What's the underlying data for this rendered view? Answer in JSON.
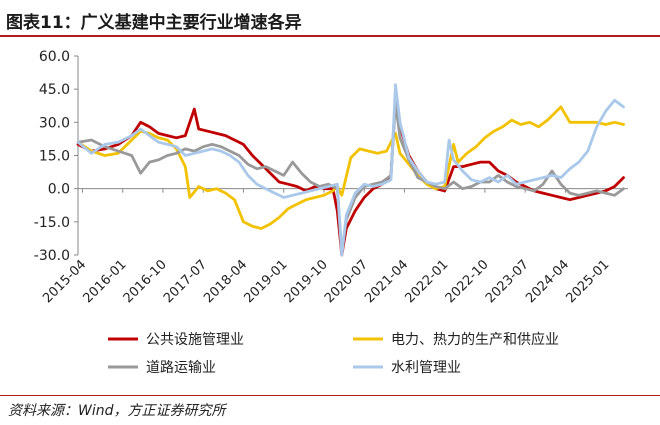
{
  "title": "图表11：广义基建中主要行业增速各异",
  "source": "资料来源：Wind，方正证券研究所",
  "chart_data": {
    "type": "line",
    "y_ticks": [
      "60.0",
      "45.0",
      "30.0",
      "15.0",
      "0.0",
      "-15.0",
      "-30.0"
    ],
    "ylim": [
      -30,
      60
    ],
    "x_ticks": [
      "2015-04",
      "2016-01",
      "2016-10",
      "2017-07",
      "2018-04",
      "2019-01",
      "2019-10",
      "2020-07",
      "2021-04",
      "2022-01",
      "2022-10",
      "2023-07",
      "2024-04",
      "2025-01"
    ],
    "xlim": [
      "2015-03",
      "2025-06"
    ],
    "grid": false,
    "legend_position": "bottom",
    "series": [
      {
        "name": "公共设施管理业",
        "color": "#c00000",
        "points": [
          [
            "2015-03",
            20
          ],
          [
            "2015-06",
            17
          ],
          [
            "2015-09",
            18
          ],
          [
            "2015-12",
            20
          ],
          [
            "2016-03",
            24
          ],
          [
            "2016-05",
            30
          ],
          [
            "2016-07",
            28
          ],
          [
            "2016-09",
            25
          ],
          [
            "2016-11",
            24
          ],
          [
            "2017-01",
            23
          ],
          [
            "2017-03",
            24
          ],
          [
            "2017-05",
            36
          ],
          [
            "2017-06",
            27
          ],
          [
            "2017-08",
            26
          ],
          [
            "2017-10",
            25
          ],
          [
            "2017-12",
            24
          ],
          [
            "2018-02",
            22
          ],
          [
            "2018-04",
            20
          ],
          [
            "2018-06",
            15
          ],
          [
            "2018-08",
            11
          ],
          [
            "2018-10",
            7
          ],
          [
            "2018-12",
            3
          ],
          [
            "2019-02",
            2
          ],
          [
            "2019-04",
            1
          ],
          [
            "2019-06",
            -1
          ],
          [
            "2019-08",
            1
          ],
          [
            "2019-10",
            0
          ],
          [
            "2019-12",
            0
          ],
          [
            "2020-01",
            -10
          ],
          [
            "2020-02",
            -30
          ],
          [
            "2020-03",
            -18
          ],
          [
            "2020-05",
            -10
          ],
          [
            "2020-07",
            -4
          ],
          [
            "2020-09",
            0
          ],
          [
            "2020-11",
            2
          ],
          [
            "2021-01",
            6
          ],
          [
            "2021-02",
            42
          ],
          [
            "2021-03",
            28
          ],
          [
            "2021-05",
            15
          ],
          [
            "2021-07",
            8
          ],
          [
            "2021-09",
            3
          ],
          [
            "2021-11",
            0
          ],
          [
            "2022-01",
            -1
          ],
          [
            "2022-03",
            10
          ],
          [
            "2022-05",
            10
          ],
          [
            "2022-07",
            11
          ],
          [
            "2022-09",
            12
          ],
          [
            "2022-11",
            12
          ],
          [
            "2023-01",
            8
          ],
          [
            "2023-03",
            6
          ],
          [
            "2023-05",
            3
          ],
          [
            "2023-07",
            1
          ],
          [
            "2023-09",
            -1
          ],
          [
            "2023-11",
            -2
          ],
          [
            "2024-01",
            -3
          ],
          [
            "2024-03",
            -4
          ],
          [
            "2024-05",
            -5
          ],
          [
            "2024-07",
            -4
          ],
          [
            "2024-09",
            -3
          ],
          [
            "2024-11",
            -2
          ],
          [
            "2025-01",
            -1
          ],
          [
            "2025-03",
            1
          ],
          [
            "2025-05",
            5
          ]
        ]
      },
      {
        "name": "电力、热力的生产和供应业",
        "color": "#f2c200",
        "points": [
          [
            "2015-03",
            21
          ],
          [
            "2015-06",
            17
          ],
          [
            "2015-09",
            15
          ],
          [
            "2015-12",
            16
          ],
          [
            "2016-03",
            22
          ],
          [
            "2016-05",
            26
          ],
          [
            "2016-07",
            25
          ],
          [
            "2016-09",
            23
          ],
          [
            "2016-11",
            22
          ],
          [
            "2017-01",
            18
          ],
          [
            "2017-03",
            10
          ],
          [
            "2017-04",
            -4
          ],
          [
            "2017-06",
            1
          ],
          [
            "2017-08",
            -1
          ],
          [
            "2017-10",
            0
          ],
          [
            "2017-12",
            -2
          ],
          [
            "2018-02",
            -5
          ],
          [
            "2018-04",
            -15
          ],
          [
            "2018-06",
            -17
          ],
          [
            "2018-08",
            -18
          ],
          [
            "2018-10",
            -16
          ],
          [
            "2018-12",
            -13
          ],
          [
            "2019-02",
            -9
          ],
          [
            "2019-04",
            -7
          ],
          [
            "2019-06",
            -5
          ],
          [
            "2019-08",
            -4
          ],
          [
            "2019-10",
            -3
          ],
          [
            "2019-12",
            -1
          ],
          [
            "2020-01",
            1
          ],
          [
            "2020-02",
            -3
          ],
          [
            "2020-04",
            14
          ],
          [
            "2020-06",
            18
          ],
          [
            "2020-08",
            17
          ],
          [
            "2020-10",
            16
          ],
          [
            "2020-12",
            17
          ],
          [
            "2021-02",
            25
          ],
          [
            "2021-03",
            16
          ],
          [
            "2021-05",
            11
          ],
          [
            "2021-07",
            6
          ],
          [
            "2021-09",
            2
          ],
          [
            "2021-11",
            0
          ],
          [
            "2022-01",
            1
          ],
          [
            "2022-03",
            20
          ],
          [
            "2022-04",
            12
          ],
          [
            "2022-06",
            16
          ],
          [
            "2022-08",
            19
          ],
          [
            "2022-10",
            23
          ],
          [
            "2022-12",
            26
          ],
          [
            "2023-02",
            28
          ],
          [
            "2023-04",
            31
          ],
          [
            "2023-06",
            29
          ],
          [
            "2023-08",
            30
          ],
          [
            "2023-10",
            28
          ],
          [
            "2023-12",
            31
          ],
          [
            "2024-01",
            33
          ],
          [
            "2024-03",
            37
          ],
          [
            "2024-05",
            30
          ],
          [
            "2024-07",
            30
          ],
          [
            "2024-09",
            30
          ],
          [
            "2024-11",
            30
          ],
          [
            "2025-01",
            29
          ],
          [
            "2025-03",
            30
          ],
          [
            "2025-05",
            29
          ]
        ]
      },
      {
        "name": "道路运输业",
        "color": "#999999",
        "points": [
          [
            "2015-03",
            21
          ],
          [
            "2015-06",
            22
          ],
          [
            "2015-09",
            19
          ],
          [
            "2015-12",
            17
          ],
          [
            "2016-03",
            15
          ],
          [
            "2016-05",
            7
          ],
          [
            "2016-07",
            12
          ],
          [
            "2016-09",
            13
          ],
          [
            "2016-11",
            15
          ],
          [
            "2017-01",
            16
          ],
          [
            "2017-03",
            18
          ],
          [
            "2017-05",
            17
          ],
          [
            "2017-07",
            19
          ],
          [
            "2017-09",
            20
          ],
          [
            "2017-11",
            19
          ],
          [
            "2018-01",
            17
          ],
          [
            "2018-03",
            15
          ],
          [
            "2018-05",
            11
          ],
          [
            "2018-07",
            9
          ],
          [
            "2018-09",
            10
          ],
          [
            "2018-11",
            8
          ],
          [
            "2019-01",
            6
          ],
          [
            "2019-03",
            12
          ],
          [
            "2019-05",
            7
          ],
          [
            "2019-07",
            3
          ],
          [
            "2019-09",
            1
          ],
          [
            "2019-11",
            2
          ],
          [
            "2020-01",
            0
          ],
          [
            "2020-02",
            -29
          ],
          [
            "2020-03",
            -14
          ],
          [
            "2020-05",
            -4
          ],
          [
            "2020-07",
            1
          ],
          [
            "2020-09",
            2
          ],
          [
            "2020-11",
            3
          ],
          [
            "2021-01",
            6
          ],
          [
            "2021-02",
            39
          ],
          [
            "2021-03",
            23
          ],
          [
            "2021-05",
            13
          ],
          [
            "2021-07",
            5
          ],
          [
            "2021-09",
            3
          ],
          [
            "2021-11",
            1
          ],
          [
            "2022-01",
            0
          ],
          [
            "2022-03",
            3
          ],
          [
            "2022-05",
            0
          ],
          [
            "2022-07",
            1
          ],
          [
            "2022-09",
            3
          ],
          [
            "2022-11",
            3
          ],
          [
            "2023-01",
            6
          ],
          [
            "2023-03",
            3
          ],
          [
            "2023-05",
            1
          ],
          [
            "2023-07",
            0
          ],
          [
            "2023-09",
            -1
          ],
          [
            "2023-11",
            2
          ],
          [
            "2024-01",
            8
          ],
          [
            "2024-03",
            2
          ],
          [
            "2024-05",
            -2
          ],
          [
            "2024-07",
            -3
          ],
          [
            "2024-09",
            -2
          ],
          [
            "2024-11",
            -1
          ],
          [
            "2025-01",
            -2
          ],
          [
            "2025-03",
            -3
          ],
          [
            "2025-05",
            0
          ]
        ]
      },
      {
        "name": "水利管理业",
        "color": "#a9c8ea",
        "points": [
          [
            "2015-03",
            21
          ],
          [
            "2015-06",
            16
          ],
          [
            "2015-09",
            20
          ],
          [
            "2015-12",
            21
          ],
          [
            "2016-03",
            24
          ],
          [
            "2016-05",
            27
          ],
          [
            "2016-07",
            24
          ],
          [
            "2016-09",
            21
          ],
          [
            "2016-11",
            20
          ],
          [
            "2017-01",
            19
          ],
          [
            "2017-03",
            15
          ],
          [
            "2017-05",
            16
          ],
          [
            "2017-07",
            17
          ],
          [
            "2017-09",
            18
          ],
          [
            "2017-11",
            17
          ],
          [
            "2018-01",
            15
          ],
          [
            "2018-03",
            12
          ],
          [
            "2018-05",
            6
          ],
          [
            "2018-07",
            2
          ],
          [
            "2018-09",
            0
          ],
          [
            "2018-11",
            -2
          ],
          [
            "2019-01",
            -4
          ],
          [
            "2019-03",
            -3
          ],
          [
            "2019-05",
            -2
          ],
          [
            "2019-07",
            -1
          ],
          [
            "2019-09",
            0
          ],
          [
            "2019-11",
            1
          ],
          [
            "2020-01",
            2
          ],
          [
            "2020-02",
            -30
          ],
          [
            "2020-03",
            -12
          ],
          [
            "2020-05",
            -2
          ],
          [
            "2020-07",
            2
          ],
          [
            "2020-09",
            1
          ],
          [
            "2020-11",
            2
          ],
          [
            "2021-01",
            4
          ],
          [
            "2021-02",
            47
          ],
          [
            "2021-03",
            30
          ],
          [
            "2021-05",
            14
          ],
          [
            "2021-07",
            8
          ],
          [
            "2021-09",
            3
          ],
          [
            "2021-11",
            2
          ],
          [
            "2022-01",
            3
          ],
          [
            "2022-02",
            22
          ],
          [
            "2022-03",
            13
          ],
          [
            "2022-05",
            8
          ],
          [
            "2022-07",
            4
          ],
          [
            "2022-09",
            3
          ],
          [
            "2022-11",
            5
          ],
          [
            "2023-01",
            3
          ],
          [
            "2023-03",
            6
          ],
          [
            "2023-05",
            2
          ],
          [
            "2023-07",
            3
          ],
          [
            "2023-09",
            4
          ],
          [
            "2023-11",
            5
          ],
          [
            "2024-01",
            6
          ],
          [
            "2024-03",
            5
          ],
          [
            "2024-05",
            9
          ],
          [
            "2024-07",
            12
          ],
          [
            "2024-09",
            17
          ],
          [
            "2024-11",
            28
          ],
          [
            "2025-01",
            35
          ],
          [
            "2025-03",
            40
          ],
          [
            "2025-05",
            37
          ]
        ]
      }
    ]
  }
}
